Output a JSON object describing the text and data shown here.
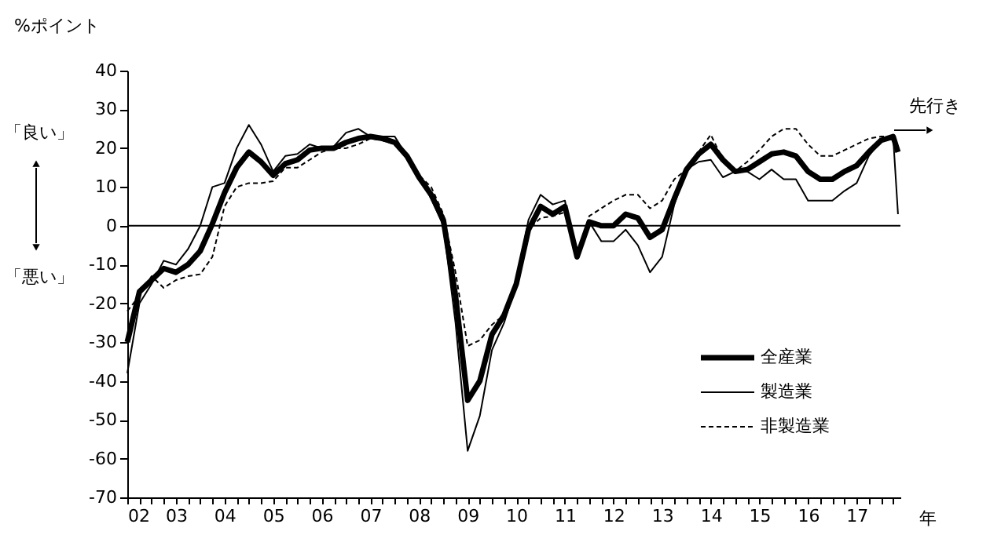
{
  "chart_data": {
    "type": "line",
    "ylabel": "%ポイント",
    "xlabel": "年",
    "annotations": [
      "「良い」",
      "「悪い」",
      "先行き"
    ],
    "x": [
      2002,
      2002.25,
      2002.5,
      2002.75,
      2003,
      2003.25,
      2003.5,
      2003.75,
      2004,
      2004.25,
      2004.5,
      2004.75,
      2005,
      2005.25,
      2005.5,
      2005.75,
      2006,
      2006.25,
      2006.5,
      2006.75,
      2007,
      2007.25,
      2007.5,
      2007.75,
      2008,
      2008.25,
      2008.5,
      2008.75,
      2009,
      2009.25,
      2009.5,
      2009.75,
      2010,
      2010.25,
      2010.5,
      2010.75,
      2011,
      2011.25,
      2011.5,
      2011.75,
      2012,
      2012.25,
      2012.5,
      2012.75,
      2013,
      2013.25,
      2013.5,
      2013.75,
      2014,
      2014.25,
      2014.5,
      2014.75,
      2015,
      2015.25,
      2015.5,
      2015.75,
      2016,
      2016.25,
      2016.5,
      2016.75,
      2017,
      2017.25,
      2017.5,
      2017.75,
      2017.85
    ],
    "series": [
      {
        "name": "全産業",
        "color": "#000000",
        "line_style": "solid",
        "values": [
          -30,
          -17,
          -14,
          -11,
          -12,
          -10,
          -6.5,
          0.5,
          8.5,
          15,
          19,
          16.5,
          13,
          16,
          17,
          19.5,
          20,
          20,
          21.5,
          22.5,
          23,
          22.5,
          21.5,
          18,
          12.5,
          8,
          1.5,
          -18,
          -45,
          -40,
          -28,
          -23,
          -15,
          -1,
          5,
          3,
          5,
          -8,
          1,
          0,
          0,
          3,
          2,
          -3,
          -1,
          7,
          14.5,
          18.5,
          21,
          17,
          14,
          14.5,
          16.5,
          18.5,
          19,
          18,
          14,
          12,
          12,
          14,
          15.5,
          19,
          22,
          23,
          19
        ]
      },
      {
        "name": "製造業",
        "color": "#000000",
        "line_style": "solid",
        "values": [
          -38,
          -20,
          -15,
          -9,
          -10,
          -6,
          0,
          10,
          11,
          20,
          26,
          21,
          14,
          18,
          18.5,
          21,
          20,
          20.5,
          24,
          25,
          23,
          23,
          23,
          18,
          13,
          7,
          0,
          -25,
          -58,
          -49,
          -32,
          -25,
          -15,
          1.5,
          8,
          5.5,
          6.5,
          -8.5,
          1,
          -4,
          -4,
          -1,
          -5,
          -12,
          -8,
          5.5,
          14.5,
          16.5,
          17,
          12.5,
          14,
          14,
          12,
          14.5,
          12,
          12,
          6.5,
          6.5,
          6.5,
          9,
          11,
          18,
          22,
          23,
          3
        ]
      },
      {
        "name": "非製造業",
        "color": "#000000",
        "line_style": "dashed",
        "values": [
          -22,
          -18,
          -13,
          -16,
          -14,
          -13,
          -12.5,
          -8,
          5,
          10,
          11,
          11,
          11.5,
          15,
          15,
          17,
          19,
          20,
          20,
          21,
          22.5,
          22,
          21,
          18,
          13,
          10,
          3,
          -12,
          -31,
          -29.5,
          -25.5,
          -23,
          -16,
          -1,
          2,
          2.5,
          3.5,
          -8,
          2.5,
          4.5,
          6.5,
          8,
          8,
          4.5,
          6.5,
          12,
          14.5,
          19,
          23.5,
          17,
          14,
          16.5,
          19.5,
          23,
          25,
          25,
          21,
          18,
          18,
          19.5,
          21,
          22.5,
          23,
          23,
          20
        ]
      }
    ],
    "xlim": [
      2002,
      2017.9
    ],
    "xticks": [
      {
        "value": 2002,
        "label": "02"
      },
      {
        "value": 2002.25,
        "label": null
      },
      {
        "value": 2002.5,
        "label": null
      },
      {
        "value": 2002.75,
        "label": null
      },
      {
        "value": 2003,
        "label": "03"
      },
      {
        "value": 2003.25,
        "label": null
      },
      {
        "value": 2003.5,
        "label": null
      },
      {
        "value": 2003.75,
        "label": null
      },
      {
        "value": 2004,
        "label": "04"
      },
      {
        "value": 2004.25,
        "label": null
      },
      {
        "value": 2004.5,
        "label": null
      },
      {
        "value": 2004.75,
        "label": null
      },
      {
        "value": 2005,
        "label": "05"
      },
      {
        "value": 2005.25,
        "label": null
      },
      {
        "value": 2005.5,
        "label": null
      },
      {
        "value": 2005.75,
        "label": null
      },
      {
        "value": 2006,
        "label": "06"
      },
      {
        "value": 2006.25,
        "label": null
      },
      {
        "value": 2006.5,
        "label": null
      },
      {
        "value": 2006.75,
        "label": null
      },
      {
        "value": 2007,
        "label": "07"
      },
      {
        "value": 2007.25,
        "label": null
      },
      {
        "value": 2007.5,
        "label": null
      },
      {
        "value": 2007.75,
        "label": null
      },
      {
        "value": 2008,
        "label": "08"
      },
      {
        "value": 2008.25,
        "label": null
      },
      {
        "value": 2008.5,
        "label": null
      },
      {
        "value": 2008.75,
        "label": null
      },
      {
        "value": 2009,
        "label": "09"
      },
      {
        "value": 2009.25,
        "label": null
      },
      {
        "value": 2009.5,
        "label": null
      },
      {
        "value": 2009.75,
        "label": null
      },
      {
        "value": 2010,
        "label": "10"
      },
      {
        "value": 2010.25,
        "label": null
      },
      {
        "value": 2010.5,
        "label": null
      },
      {
        "value": 2010.75,
        "label": null
      },
      {
        "value": 2011,
        "label": "11"
      },
      {
        "value": 2011.25,
        "label": null
      },
      {
        "value": 2011.5,
        "label": null
      },
      {
        "value": 2011.75,
        "label": null
      },
      {
        "value": 2012,
        "label": "12"
      },
      {
        "value": 2012.25,
        "label": null
      },
      {
        "value": 2012.5,
        "label": null
      },
      {
        "value": 2012.75,
        "label": null
      },
      {
        "value": 2013,
        "label": "13"
      },
      {
        "value": 2013.25,
        "label": null
      },
      {
        "value": 2013.5,
        "label": null
      },
      {
        "value": 2013.75,
        "label": null
      },
      {
        "value": 2014,
        "label": "14"
      },
      {
        "value": 2014.25,
        "label": null
      },
      {
        "value": 2014.5,
        "label": null
      },
      {
        "value": 2014.75,
        "label": null
      },
      {
        "value": 2015,
        "label": "15"
      },
      {
        "value": 2015.25,
        "label": null
      },
      {
        "value": 2015.5,
        "label": null
      },
      {
        "value": 2015.75,
        "label": null
      },
      {
        "value": 2016,
        "label": "16"
      },
      {
        "value": 2016.25,
        "label": null
      },
      {
        "value": 2016.5,
        "label": null
      },
      {
        "value": 2016.75,
        "label": null
      },
      {
        "value": 2017,
        "label": "17"
      },
      {
        "value": 2017.25,
        "label": null
      },
      {
        "value": 2017.5,
        "label": null
      },
      {
        "value": 2017.75,
        "label": null
      }
    ],
    "ylim": [
      -70,
      40
    ],
    "yticks": [
      -70,
      -60,
      -50,
      -40,
      -30,
      -20,
      -10,
      0,
      10,
      20,
      30,
      40
    ],
    "ref_lines": [
      {
        "axis": "y",
        "value": 0,
        "color": "#000000"
      }
    ],
    "grid": false,
    "legend": "bottom right",
    "marker": "none"
  }
}
